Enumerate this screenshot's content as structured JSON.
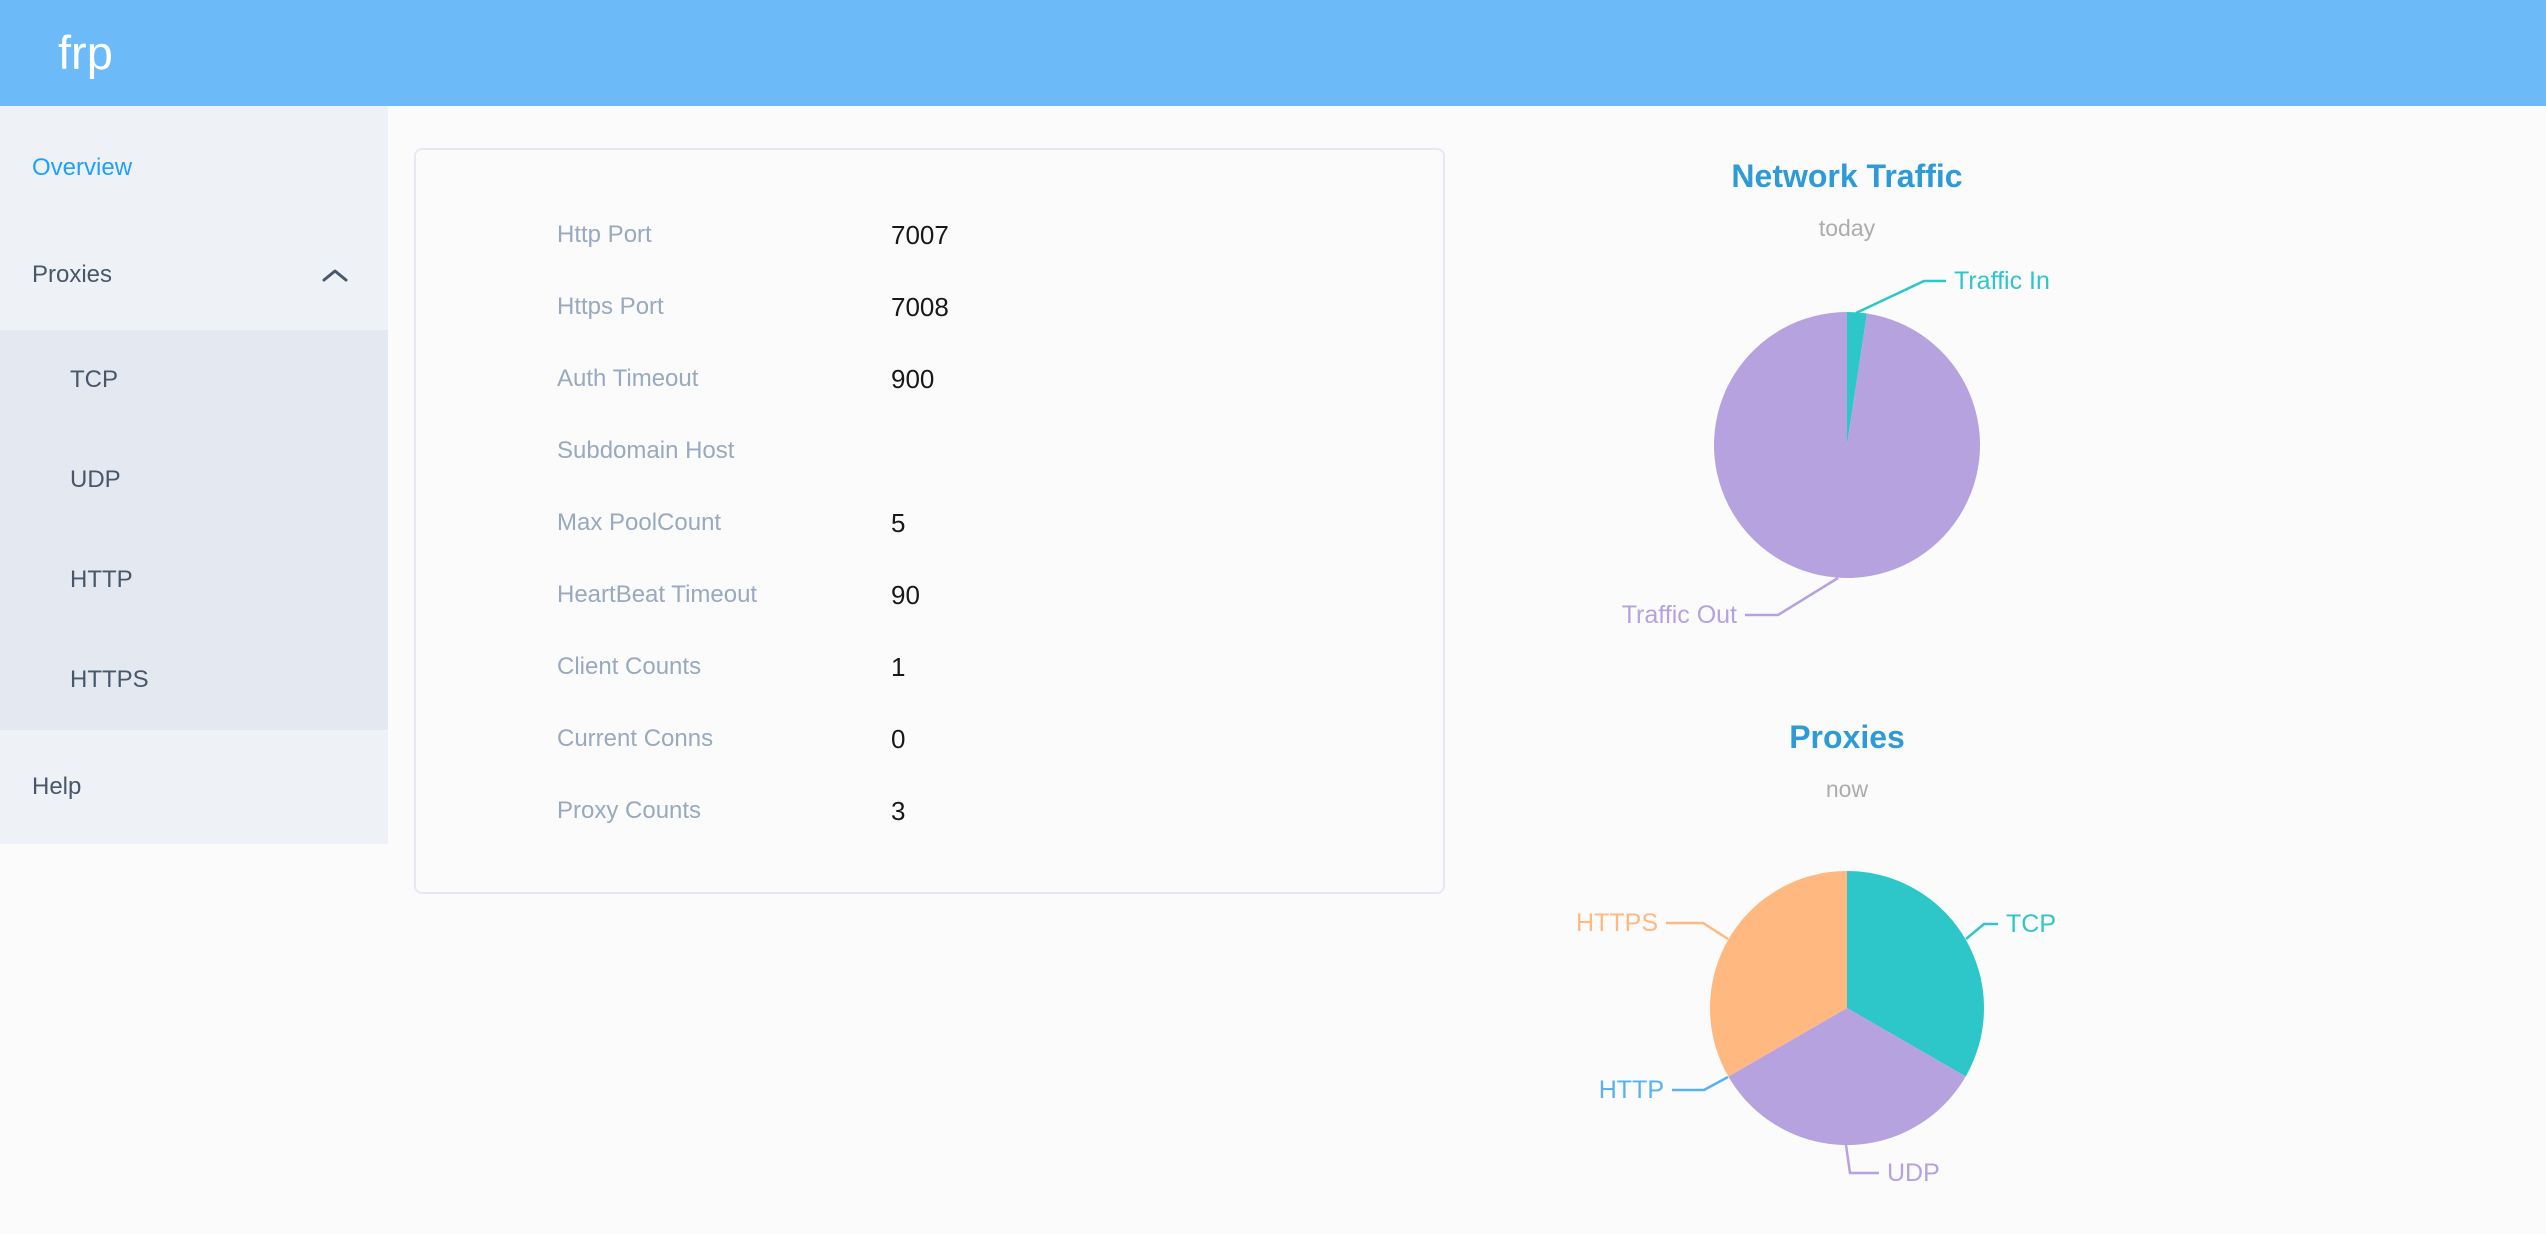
{
  "theme": {
    "header_bg": "#6cbbf8",
    "logo_color": "#ffffff",
    "page_bg": "#fbfbfb",
    "sidebar_bg": "#eef1f6",
    "submenu_bg": "#e4e8f1",
    "menu_text": "#48576a",
    "active_link": "#20a0ff",
    "card_border": "#e6e9f4",
    "label_color": "#99a9bf",
    "value_color": "#17181a",
    "chart_title_color": "#2e9bd6",
    "chart_subtitle_color": "#acacac"
  },
  "header": {
    "logo_text": "frp"
  },
  "sidebar": {
    "items": [
      {
        "label": "Overview",
        "active": true
      },
      {
        "label": "Proxies",
        "expanded": true,
        "children": [
          {
            "label": "TCP"
          },
          {
            "label": "UDP"
          },
          {
            "label": "HTTP"
          },
          {
            "label": "HTTPS"
          }
        ]
      },
      {
        "label": "Help"
      }
    ]
  },
  "server_config": {
    "rows": [
      {
        "label": "Http Port",
        "value": "7007"
      },
      {
        "label": "Https Port",
        "value": "7008"
      },
      {
        "label": "Auth Timeout",
        "value": "900"
      },
      {
        "label": "Subdomain Host",
        "value": ""
      },
      {
        "label": "Max PoolCount",
        "value": "5"
      },
      {
        "label": "HeartBeat Timeout",
        "value": "90"
      },
      {
        "label": "Client Counts",
        "value": "1"
      },
      {
        "label": "Current Conns",
        "value": "0"
      },
      {
        "label": "Proxy Counts",
        "value": "3"
      }
    ]
  },
  "chart_data": [
    {
      "type": "pie",
      "title": "Network Traffic",
      "subtitle": "today",
      "labels": [
        "Traffic In",
        "Traffic Out"
      ],
      "values": [
        2.4,
        97.6
      ],
      "values_unit": "percent-of-pie (estimated from arc angles)",
      "colors": [
        "#2ec7c9",
        "#b6a2de"
      ],
      "label_style": "callout",
      "legend_position": "none"
    },
    {
      "type": "pie",
      "title": "Proxies",
      "subtitle": "now",
      "labels": [
        "TCP",
        "UDP",
        "HTTP",
        "HTTPS"
      ],
      "values": [
        1,
        1,
        0,
        1
      ],
      "values_unit": "proxy count",
      "colors": [
        "#2ec7c9",
        "#b6a2de",
        "#5ab1ef",
        "#ffb980"
      ],
      "label_style": "callout",
      "legend_position": "none"
    }
  ]
}
